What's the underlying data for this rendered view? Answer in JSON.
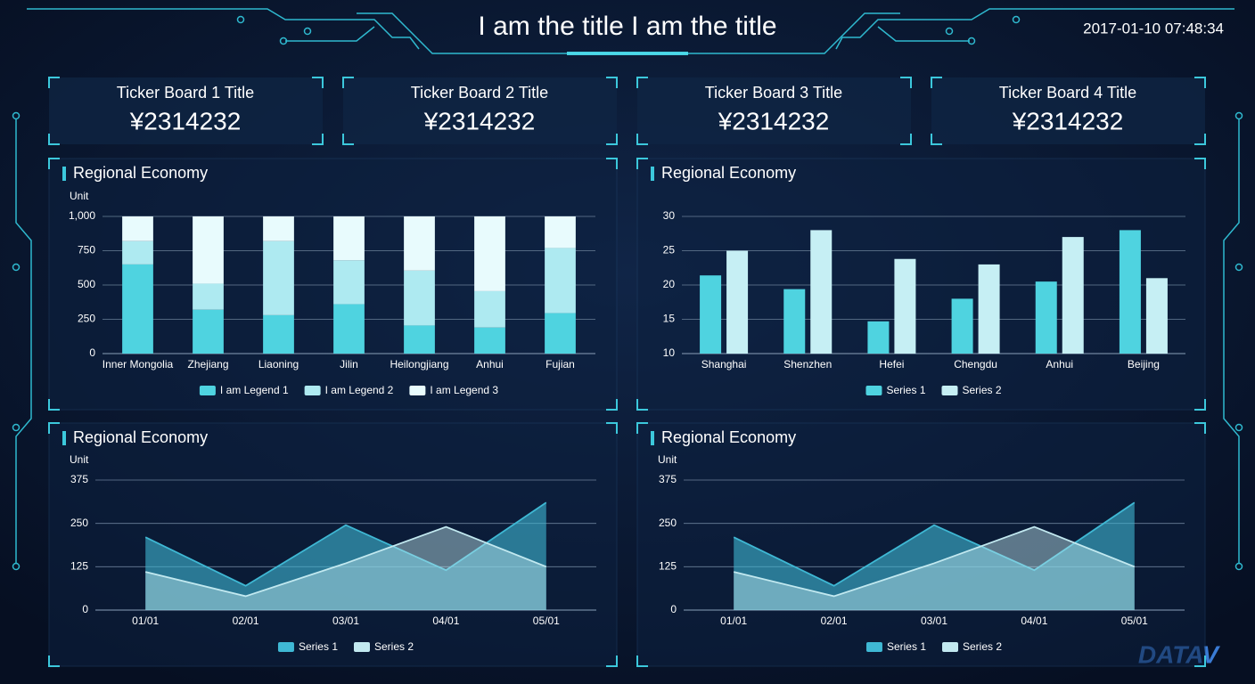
{
  "header": {
    "title": "I am the title I am the title",
    "datetime": "2017-01-10 07:48:34"
  },
  "tickers": [
    {
      "title": "Ticker Board 1 Title",
      "value": "¥2314232"
    },
    {
      "title": "Ticker Board 2 Title",
      "value": "¥2314232"
    },
    {
      "title": "Ticker Board 3 Title",
      "value": "¥2314232"
    },
    {
      "title": "Ticker Board 4 Title",
      "value": "¥2314232"
    }
  ],
  "chart_data": [
    {
      "type": "stacked_bar",
      "title": "Regional Economy",
      "y_label": "Unit",
      "categories": [
        "Inner Mongolia",
        "Zhejiang",
        "Liaoning",
        "Jilin",
        "Heilongjiang",
        "Anhui",
        "Fujian"
      ],
      "series": [
        {
          "name": "I am Legend 1",
          "color": "#4fd3e0",
          "values": [
            650,
            320,
            280,
            360,
            205,
            190,
            295
          ]
        },
        {
          "name": "I am Legend 2",
          "color": "#aeeaf1",
          "values": [
            170,
            190,
            540,
            320,
            400,
            265,
            475
          ]
        },
        {
          "name": "I am Legend 3",
          "color": "#e8fbfd",
          "values": [
            180,
            490,
            180,
            320,
            395,
            545,
            230
          ]
        }
      ],
      "ylim": [
        0,
        1000
      ],
      "yticks": [
        0,
        250,
        500,
        750,
        {
          "value": 1000,
          "label": "1,000"
        }
      ],
      "grid": true
    },
    {
      "type": "bar",
      "title": "Regional Economy",
      "categories": [
        "Shanghai",
        "Shenzhen",
        "Hefei",
        "Chengdu",
        "Anhui",
        "Beijing"
      ],
      "series": [
        {
          "name": "Series 1",
          "color": "#4fd3e0",
          "values": [
            21.4,
            19.4,
            14.7,
            18,
            20.5,
            28
          ]
        },
        {
          "name": "Series 2",
          "color": "#c6eff4",
          "values": [
            25,
            28,
            23.8,
            23,
            27,
            21
          ]
        }
      ],
      "ylim": [
        10,
        30
      ],
      "yticks": [
        10,
        15,
        20,
        25,
        30
      ],
      "grid": true
    },
    {
      "type": "area",
      "title": "Regional Economy",
      "y_label": "Unit",
      "categories": [
        "01/01",
        "02/01",
        "03/01",
        "04/01",
        "05/01"
      ],
      "series": [
        {
          "name": "Series 1",
          "color": "#3fb8d4",
          "values": [
            210,
            70,
            245,
            115,
            310
          ]
        },
        {
          "name": "Series 2",
          "color": "#c2e9f0",
          "values": [
            110,
            40,
            135,
            240,
            125
          ]
        }
      ],
      "ylim": [
        0,
        375
      ],
      "yticks": [
        0,
        125,
        250,
        375
      ],
      "grid": true
    },
    {
      "type": "area",
      "title": "Regional Economy",
      "y_label": "Unit",
      "categories": [
        "01/01",
        "02/01",
        "03/01",
        "04/01",
        "05/01"
      ],
      "series": [
        {
          "name": "Series 1",
          "color": "#3fb8d4",
          "values": [
            210,
            70,
            245,
            115,
            310
          ]
        },
        {
          "name": "Series 2",
          "color": "#c2e9f0",
          "values": [
            110,
            40,
            135,
            240,
            125
          ]
        }
      ],
      "ylim": [
        0,
        375
      ],
      "yticks": [
        0,
        125,
        250,
        375
      ],
      "grid": true
    }
  ],
  "logo": "DATAV"
}
